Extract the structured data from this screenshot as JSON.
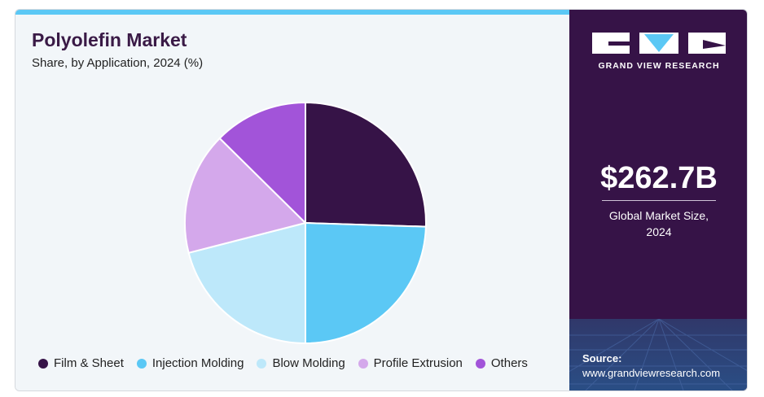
{
  "header": {
    "title": "Polyolefin Market",
    "subtitle": "Share, by Application, 2024 (%)"
  },
  "brand": {
    "logo_text": "GRAND VIEW RESEARCH"
  },
  "highlight": {
    "value": "$262.7B",
    "label_line1": "Global Market Size,",
    "label_line2": "2024"
  },
  "source": {
    "label": "Source:",
    "url": "www.grandviewresearch.com"
  },
  "chart_data": {
    "type": "pie",
    "title": "Polyolefin Market",
    "subtitle": "Share, by Application, 2024 (%)",
    "categories": [
      "Film & Sheet",
      "Injection Molding",
      "Blow Molding",
      "Profile Extrusion",
      "Others"
    ],
    "values": [
      25.5,
      24.5,
      21.0,
      16.4,
      12.6
    ],
    "colors": [
      "#361347",
      "#5bc8f5",
      "#bde8fa",
      "#d4a8eb",
      "#a254d9"
    ],
    "legend_position": "bottom",
    "start_angle_deg": 0,
    "direction": "clockwise"
  },
  "colors": {
    "accent": "#5bc8f5",
    "brand_dark": "#361347"
  }
}
